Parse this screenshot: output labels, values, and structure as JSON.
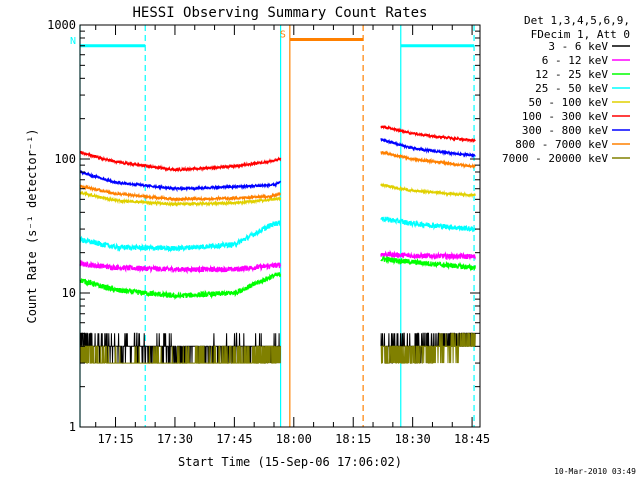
{
  "chart_data": {
    "type": "line",
    "title": "HESSI Observing Summary Count Rates",
    "xlabel": "Start Time (15-Sep-06 17:06:02)",
    "ylabel": "Count Rate (s⁻¹ detector⁻¹)",
    "y_scale": "log",
    "ylim": [
      1,
      1000
    ],
    "y_ticks": [
      {
        "value": 1,
        "label": "1"
      },
      {
        "value": 10,
        "label": "10"
      },
      {
        "value": 100,
        "label": "100"
      },
      {
        "value": 1000,
        "label": "1000"
      }
    ],
    "xlim": [
      "17:06:02",
      "18:47:00"
    ],
    "x_ticks": [
      "17:15",
      "17:30",
      "17:45",
      "18:00",
      "18:15",
      "18:30",
      "18:45"
    ],
    "legend_header": [
      "Det 1,3,4,5,6,9,",
      "FDecim 1, Att 0"
    ],
    "legend_position": "right",
    "timestamp": "10-Mar-2010 03:49",
    "series": [
      {
        "name": "3 - 6 keV",
        "color": "#000000",
        "x": [
          "17:06:02",
          "17:15",
          "17:30",
          "17:45",
          "17:55",
          "18:22",
          "18:30",
          "18:40",
          "18:45"
        ],
        "y": [
          4.2,
          3.9,
          3.8,
          3.8,
          3.9,
          4.0,
          4.0,
          4.3,
          4.6
        ]
      },
      {
        "name": "6 - 12 keV",
        "color": "#ff00ff",
        "x": [
          "17:06:02",
          "17:15",
          "17:30",
          "17:45",
          "17:55",
          "18:22",
          "18:30",
          "18:40",
          "18:45"
        ],
        "y": [
          16.5,
          15.5,
          15.0,
          15.0,
          16.0,
          19.5,
          19.0,
          18.8,
          18.7
        ]
      },
      {
        "name": "12 - 25 keV",
        "color": "#00ff00",
        "x": [
          "17:06:02",
          "17:15",
          "17:30",
          "17:45",
          "17:55",
          "18:22",
          "18:30",
          "18:40",
          "18:45"
        ],
        "y": [
          12.5,
          10.5,
          9.5,
          10.0,
          13.5,
          18.0,
          17.0,
          16.0,
          15.5
        ]
      },
      {
        "name": "25 - 50 keV",
        "color": "#00ffff",
        "x": [
          "17:06:02",
          "17:15",
          "17:30",
          "17:45",
          "17:55",
          "18:22",
          "18:30",
          "18:40",
          "18:45"
        ],
        "y": [
          25.0,
          22.0,
          21.5,
          23.0,
          33.0,
          36.0,
          33.0,
          31.0,
          30.0
        ]
      },
      {
        "name": "50 - 100 keV",
        "color": "#e0d000",
        "x": [
          "17:06:02",
          "17:15",
          "17:30",
          "17:45",
          "17:55",
          "18:22",
          "18:30",
          "18:40",
          "18:45"
        ],
        "y": [
          56.0,
          49.0,
          46.0,
          47.0,
          50.0,
          64.0,
          58.0,
          55.0,
          54.0
        ]
      },
      {
        "name": "100 - 300 keV",
        "color": "#ff0000",
        "x": [
          "17:06:02",
          "17:15",
          "17:30",
          "17:45",
          "17:55",
          "18:22",
          "18:30",
          "18:40",
          "18:45"
        ],
        "y": [
          112.0,
          95.0,
          83.0,
          88.0,
          97.0,
          175.0,
          155.0,
          143.0,
          138.0
        ]
      },
      {
        "name": "300 - 800 keV",
        "color": "#0000ff",
        "x": [
          "17:06:02",
          "17:15",
          "17:30",
          "17:45",
          "17:55",
          "18:22",
          "18:30",
          "18:40",
          "18:45"
        ],
        "y": [
          80.0,
          67.0,
          60.0,
          62.0,
          64.0,
          140.0,
          120.0,
          110.0,
          107.0
        ]
      },
      {
        "name": "800 - 7000 keV",
        "color": "#ff8000",
        "x": [
          "17:06:02",
          "17:15",
          "17:30",
          "17:45",
          "17:55",
          "18:22",
          "18:30",
          "18:40",
          "18:45"
        ],
        "y": [
          63.0,
          55.0,
          50.0,
          51.0,
          53.0,
          112.0,
          100.0,
          92.0,
          88.0
        ]
      },
      {
        "name": "7000 - 20000 keV",
        "color": "#808000",
        "x": [
          "17:06:02",
          "17:15",
          "17:30",
          "17:45",
          "17:55",
          "18:22",
          "18:30",
          "18:40",
          "18:45"
        ],
        "y": [
          3.8,
          3.0,
          3.0,
          3.2,
          3.5,
          3.5,
          3.5,
          4.0,
          4.3
        ]
      }
    ],
    "markers": [
      {
        "label": "N",
        "color": "#00ffff",
        "start": "17:06:02",
        "end": "17:22:30",
        "level": 700
      },
      {
        "label": "S",
        "color": "#ff8000",
        "start": "17:59:00",
        "end": "18:17:30",
        "level": 780
      },
      {
        "label": "",
        "color": "#00ffff",
        "start": "18:27:00",
        "end": "18:45:30",
        "level": 700
      }
    ],
    "vertical_lines": [
      {
        "time": "17:06:02",
        "color": "#00ffff",
        "style": "solid"
      },
      {
        "time": "17:22:30",
        "color": "#00ffff",
        "style": "dashed"
      },
      {
        "time": "17:56:40",
        "color": "#00ffff",
        "style": "solid"
      },
      {
        "time": "17:59:00",
        "color": "#ff8000",
        "style": "solid"
      },
      {
        "time": "18:17:30",
        "color": "#ff8000",
        "style": "dashed"
      },
      {
        "time": "18:27:00",
        "color": "#00ffff",
        "style": "solid"
      },
      {
        "time": "18:45:30",
        "color": "#00ffff",
        "style": "dashed"
      }
    ]
  }
}
